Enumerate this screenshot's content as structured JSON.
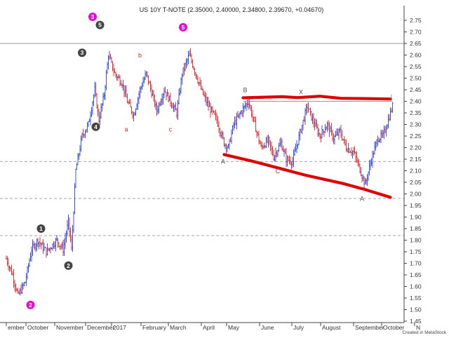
{
  "chart_data": {
    "type": "ohlc",
    "title": "US 10Y T-NOTE (2.35000, 2.40000, 2.34800, 2.39670, +0.04670)",
    "credit": "Created in MetaStock",
    "ylim": [
      1.4,
      2.78
    ],
    "y_ticks": [
      "2.75",
      "2.70",
      "2.65",
      "2.60",
      "2.55",
      "2.50",
      "2.45",
      "2.40",
      "2.35",
      "2.30",
      "2.25",
      "2.20",
      "2.15",
      "2.10",
      "2.05",
      "2.00",
      "1.95",
      "1.90",
      "1.85",
      "1.80",
      "1.75",
      "1.70",
      "1.65",
      "1.60",
      "1.55",
      "1.50",
      "1.45"
    ],
    "x_labels": [
      "ember",
      "October",
      "November",
      "December",
      "2017",
      "February",
      "March",
      "April",
      "May",
      "June",
      "July",
      "August",
      "September",
      "October",
      "N"
    ],
    "horizontal_levels": [
      2.65,
      2.14,
      1.98,
      1.82
    ],
    "price_anchors": [
      {
        "t": 0,
        "v": 1.72
      },
      {
        "t": 6,
        "v": 1.65
      },
      {
        "t": 11,
        "v": 1.56
      },
      {
        "t": 18,
        "v": 1.62
      },
      {
        "t": 24,
        "v": 1.76
      },
      {
        "t": 30,
        "v": 1.8
      },
      {
        "t": 38,
        "v": 1.75
      },
      {
        "t": 48,
        "v": 1.8
      },
      {
        "t": 54,
        "v": 1.76
      },
      {
        "t": 59,
        "v": 1.88
      },
      {
        "t": 62,
        "v": 1.76
      },
      {
        "t": 66,
        "v": 2.1
      },
      {
        "t": 72,
        "v": 2.25
      },
      {
        "t": 78,
        "v": 2.3
      },
      {
        "t": 84,
        "v": 2.45
      },
      {
        "t": 88,
        "v": 2.32
      },
      {
        "t": 93,
        "v": 2.43
      },
      {
        "t": 97,
        "v": 2.6
      },
      {
        "t": 103,
        "v": 2.52
      },
      {
        "t": 110,
        "v": 2.48
      },
      {
        "t": 115,
        "v": 2.4
      },
      {
        "t": 121,
        "v": 2.34
      },
      {
        "t": 127,
        "v": 2.45
      },
      {
        "t": 133,
        "v": 2.52
      },
      {
        "t": 138,
        "v": 2.44
      },
      {
        "t": 143,
        "v": 2.36
      },
      {
        "t": 150,
        "v": 2.45
      },
      {
        "t": 156,
        "v": 2.4
      },
      {
        "t": 162,
        "v": 2.35
      },
      {
        "t": 167,
        "v": 2.52
      },
      {
        "t": 174,
        "v": 2.6
      },
      {
        "t": 180,
        "v": 2.52
      },
      {
        "t": 186,
        "v": 2.44
      },
      {
        "t": 192,
        "v": 2.38
      },
      {
        "t": 200,
        "v": 2.32
      },
      {
        "t": 207,
        "v": 2.22
      },
      {
        "t": 211,
        "v": 2.2
      },
      {
        "t": 216,
        "v": 2.3
      },
      {
        "t": 224,
        "v": 2.36
      },
      {
        "t": 230,
        "v": 2.4
      },
      {
        "t": 236,
        "v": 2.3
      },
      {
        "t": 242,
        "v": 2.2
      },
      {
        "t": 249,
        "v": 2.23
      },
      {
        "t": 254,
        "v": 2.16
      },
      {
        "t": 261,
        "v": 2.22
      },
      {
        "t": 266,
        "v": 2.15
      },
      {
        "t": 272,
        "v": 2.14
      },
      {
        "t": 280,
        "v": 2.28
      },
      {
        "t": 286,
        "v": 2.38
      },
      {
        "t": 291,
        "v": 2.32
      },
      {
        "t": 298,
        "v": 2.25
      },
      {
        "t": 305,
        "v": 2.3
      },
      {
        "t": 311,
        "v": 2.24
      },
      {
        "t": 317,
        "v": 2.27
      },
      {
        "t": 323,
        "v": 2.2
      },
      {
        "t": 330,
        "v": 2.18
      },
      {
        "t": 335,
        "v": 2.12
      },
      {
        "t": 341,
        "v": 2.04
      },
      {
        "t": 347,
        "v": 2.15
      },
      {
        "t": 353,
        "v": 2.24
      },
      {
        "t": 358,
        "v": 2.25
      },
      {
        "t": 363,
        "v": 2.32
      },
      {
        "t": 367,
        "v": 2.38
      }
    ],
    "trendlines": [
      {
        "name": "upper",
        "color": "#dd0000",
        "points": [
          [
            225,
            2.415
          ],
          [
            245,
            2.418
          ],
          [
            262,
            2.42
          ],
          [
            277,
            2.416
          ],
          [
            298,
            2.422
          ],
          [
            318,
            2.413
          ],
          [
            338,
            2.412
          ],
          [
            365,
            2.41
          ]
        ]
      },
      {
        "name": "lower",
        "color": "#dd0000",
        "points": [
          [
            207,
            2.17
          ],
          [
            235,
            2.14
          ],
          [
            260,
            2.11
          ],
          [
            285,
            2.08
          ],
          [
            320,
            2.045
          ],
          [
            340,
            2.02
          ],
          [
            365,
            1.985
          ]
        ]
      }
    ],
    "wave_labels": [
      {
        "text": "5",
        "style": "dark",
        "t": 89,
        "v": 2.73
      },
      {
        "text": "3",
        "style": "dark",
        "t": 72,
        "v": 2.61
      },
      {
        "text": "4",
        "style": "dark",
        "t": 85,
        "v": 2.29
      },
      {
        "text": "3",
        "style": "magenta",
        "t": 82,
        "v": 2.765
      },
      {
        "text": "5",
        "style": "magenta",
        "t": 168,
        "v": 2.72
      },
      {
        "text": "1",
        "style": "dark",
        "t": 33,
        "v": 1.85
      },
      {
        "text": "2",
        "style": "dark",
        "t": 59,
        "v": 1.69
      },
      {
        "text": "2",
        "style": "magenta",
        "t": 23,
        "v": 1.52
      },
      {
        "text": "a",
        "style": "red",
        "t": 114,
        "v": 2.27
      },
      {
        "text": "b",
        "style": "red",
        "t": 127,
        "v": 2.59
      },
      {
        "text": "c",
        "style": "red",
        "t": 156,
        "v": 2.27
      },
      {
        "text": "B",
        "style": "gray",
        "t": 227,
        "v": 2.44
      },
      {
        "text": "X",
        "style": "gray",
        "t": 280,
        "v": 2.43
      },
      {
        "text": "A",
        "style": "gray",
        "t": 206,
        "v": 2.13
      },
      {
        "text": "C",
        "style": "gray",
        "t": 258,
        "v": 2.09
      },
      {
        "text": "A",
        "style": "gray",
        "t": 338,
        "v": 1.97
      }
    ]
  }
}
